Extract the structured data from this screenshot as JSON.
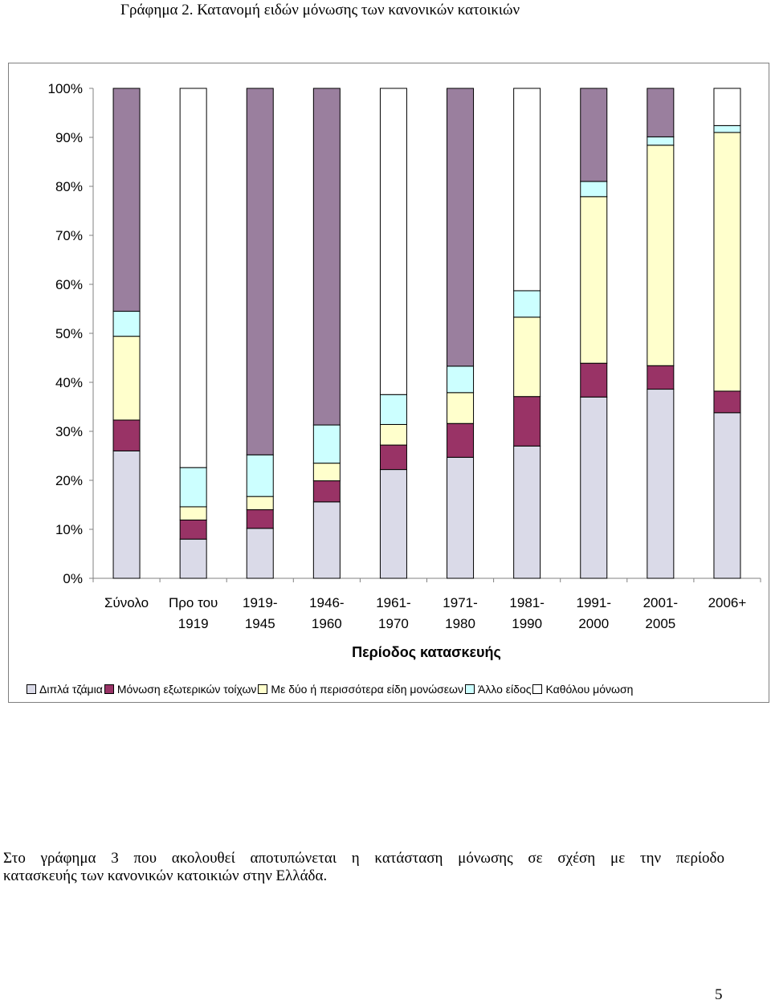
{
  "title": "Γράφημα 2. Κατανομή ειδών μόνωσης των κανονικών κατοικιών",
  "chart_data": {
    "type": "bar",
    "stacked": true,
    "title": "Γράφημα 2. Κατανομή ειδών μόνωσης των κανονικών κατοικιών",
    "xlabel": "Περίοδος κατασκευής",
    "ylabel": "",
    "ylim": [
      0,
      100
    ],
    "yticks": [
      "0%",
      "10%",
      "20%",
      "30%",
      "40%",
      "50%",
      "60%",
      "70%",
      "80%",
      "90%",
      "100%"
    ],
    "categories": [
      [
        "Σύνολο"
      ],
      [
        "Προ του",
        "1919"
      ],
      [
        "1919-",
        "1945"
      ],
      [
        "1946-",
        "1960"
      ],
      [
        "1961-",
        "1970"
      ],
      [
        "1971-",
        "1980"
      ],
      [
        "1981-",
        "1990"
      ],
      [
        "1991-",
        "2000"
      ],
      [
        "2001-",
        "2005"
      ],
      [
        "2006+"
      ]
    ],
    "series": [
      {
        "name": "Διπλά τζάμια",
        "color": "#dadae8",
        "values": [
          26,
          8,
          10.2,
          15.6,
          22.2,
          24.7,
          27,
          37,
          38.6,
          33.8
        ]
      },
      {
        "name": "Μόνωση εξωτερικών τοίχων",
        "color": "#993366",
        "values": [
          6.3,
          3.9,
          3.8,
          4.3,
          5,
          6.9,
          10.1,
          6.9,
          4.8,
          4.4
        ]
      },
      {
        "name": "Με δύο ή περισσότερα είδη μονώσεων",
        "color": "#ffffcc",
        "values": [
          17.1,
          2.7,
          2.7,
          3.6,
          4.2,
          6.3,
          16.2,
          34,
          45,
          52.8
        ]
      },
      {
        "name": "Άλλο είδος",
        "color": "#ccffff",
        "values": [
          5.1,
          8,
          8.5,
          7.8,
          6.1,
          5.4,
          5.4,
          3.1,
          1.7,
          1.4
        ]
      },
      {
        "name": "Καθόλου μόνωση",
        "color": "#9a7f9e",
        "values": [
          45.5,
          0,
          74.8,
          68.7,
          0,
          56.7,
          0,
          19,
          9.9,
          0
        ]
      },
      {
        "name": "Καθόλου μόνωση",
        "color": "#ffffff",
        "values": [
          0,
          77.4,
          0,
          0,
          62.5,
          0,
          41.3,
          0,
          0,
          7.6
        ]
      }
    ],
    "legend_position": "bottom",
    "grid": false
  },
  "legend": [
    {
      "label": "Διπλά τζάμια",
      "color": "#dadae8"
    },
    {
      "label": "Μόνωση εξωτερικών τοίχων",
      "color": "#993366"
    },
    {
      "label": "Με δύο ή περισσότερα είδη μονώσεων",
      "color": "#ffffcc"
    },
    {
      "label": "Άλλο είδος",
      "color": "#ccffff"
    },
    {
      "label": "Καθόλου μόνωση",
      "color": "#ffffff"
    }
  ],
  "paragraph": {
    "line1": "Στο γράφημα 3 που ακολουθεί αποτυπώνεται η κατάσταση μόνωσης σε σχέση με την περίοδο",
    "line2": "κατασκευής των κανονικών κατοικιών στην Ελλάδα."
  },
  "page_number": "5"
}
